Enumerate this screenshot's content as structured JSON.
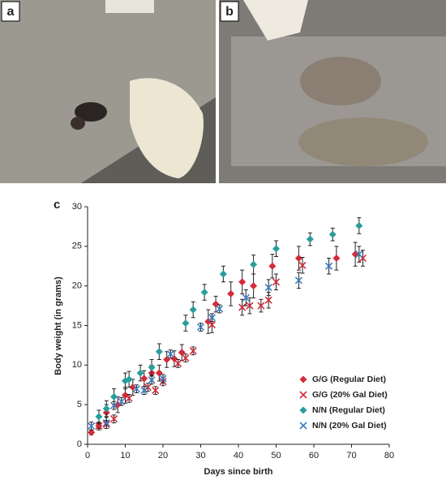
{
  "panel_labels": [
    "a",
    "b",
    "c"
  ],
  "chart_data": {
    "type": "scatter",
    "y_label": "Body weight (in grams)",
    "x_label": "Days since birth",
    "xlim": [
      0,
      80
    ],
    "ylim": [
      0,
      30
    ],
    "xticks": [
      0,
      10,
      20,
      30,
      40,
      50,
      60,
      70,
      80
    ],
    "yticks": [
      0,
      5,
      10,
      15,
      20,
      25,
      30
    ],
    "grid": false,
    "legend": "lower right",
    "series": [
      {
        "name": "G/G (Regular Diet)",
        "color": "#d62b3a",
        "marker": "diamond",
        "x": [
          1,
          3,
          5,
          8,
          10,
          12,
          15,
          17,
          19,
          21,
          23,
          25,
          32,
          34,
          38,
          41,
          44,
          49,
          56,
          66,
          71
        ],
        "values": [
          1.5,
          2.3,
          4,
          5,
          6.2,
          7.2,
          8.3,
          9,
          9,
          10.7,
          10.8,
          11.6,
          15.5,
          17.7,
          19,
          20.5,
          20,
          22.5,
          23.5,
          23.5,
          24
        ],
        "errors": [
          0.3,
          0.5,
          1,
          1,
          1,
          1,
          1,
          1,
          1,
          1,
          1,
          1,
          1.5,
          1,
          1.5,
          1.5,
          1.5,
          1.5,
          1.5,
          1.5,
          1.5
        ]
      },
      {
        "name": "G/G (20% Gal Diet)",
        "color": "#d62b3a",
        "marker": "x",
        "x": [
          3,
          5,
          7,
          11,
          16,
          18,
          20,
          24,
          26,
          28,
          33,
          41,
          43,
          46,
          48,
          50,
          57,
          73
        ],
        "values": [
          2.3,
          2.5,
          3.2,
          5.8,
          7.2,
          6.8,
          7.9,
          10.2,
          10.9,
          11.8,
          15.1,
          17.3,
          17.5,
          17.5,
          18.2,
          20.5,
          22.6,
          23.5
        ],
        "errors": [
          0.3,
          0.5,
          0.5,
          0.5,
          0.5,
          0.5,
          0.5,
          0.5,
          0.5,
          0.5,
          1,
          1,
          1,
          0.8,
          1,
          1,
          1,
          1
        ]
      },
      {
        "name": "N/N (Regular Diet)",
        "color": "#2a9d9c",
        "marker": "diamond",
        "x": [
          3,
          5,
          7,
          10,
          11,
          14,
          17,
          19,
          26,
          28,
          31,
          36,
          44,
          50,
          59,
          65,
          72
        ],
        "values": [
          3.5,
          4.5,
          6,
          8,
          8.2,
          9,
          9.7,
          11.7,
          15.3,
          17,
          19.2,
          21.5,
          22.7,
          24.7,
          25.9,
          26.5,
          27.6
        ],
        "errors": [
          0.8,
          1,
          1,
          1,
          1,
          1,
          1,
          1,
          1,
          1,
          1,
          1,
          1.2,
          1,
          0.8,
          0.8,
          1
        ]
      },
      {
        "name": "N/N (20% Gal Diet)",
        "color": "#3b7fc4",
        "marker": "x",
        "x": [
          1,
          5,
          7,
          9,
          13,
          15,
          17,
          20,
          22,
          30,
          33,
          35,
          42,
          48,
          56,
          64,
          72
        ],
        "values": [
          2.3,
          2.7,
          4.9,
          5.4,
          7,
          6.8,
          8.1,
          8.3,
          11.4,
          14.8,
          16,
          17.1,
          18.5,
          19.8,
          20.7,
          22.5,
          24
        ],
        "errors": [
          0.5,
          0.7,
          0.5,
          0.5,
          0.5,
          0.5,
          0.5,
          0.5,
          0.5,
          0.5,
          0.5,
          0.5,
          1,
          1,
          1,
          1,
          1
        ]
      }
    ]
  }
}
